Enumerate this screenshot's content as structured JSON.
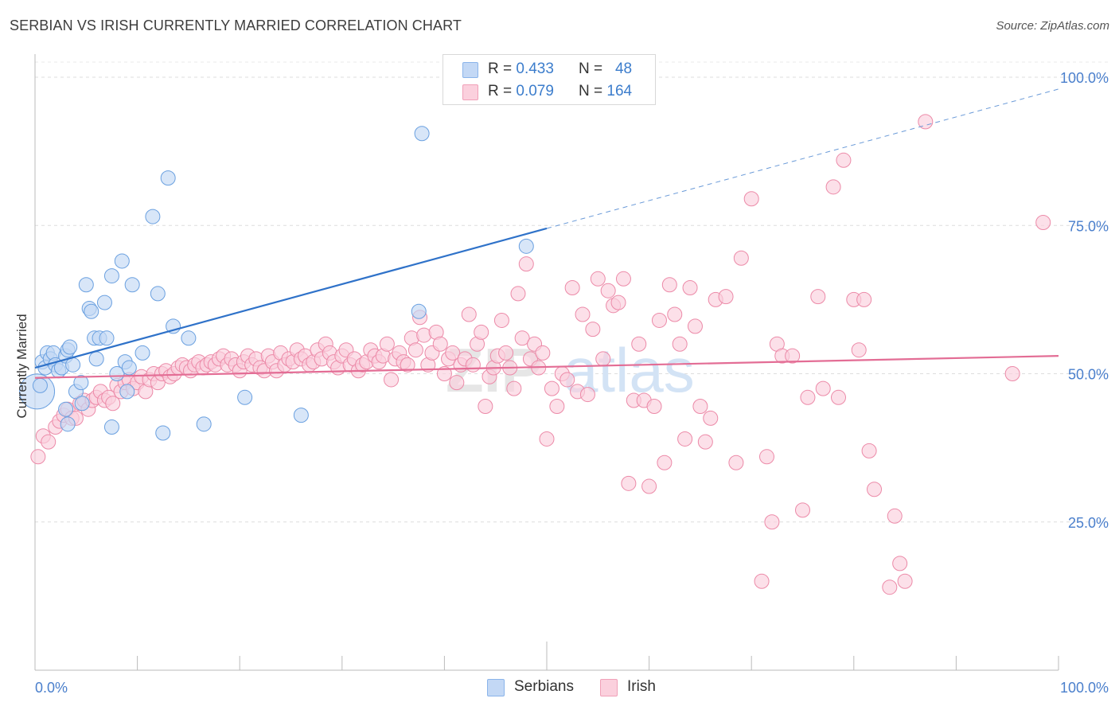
{
  "header": {
    "title": "SERBIAN VS IRISH CURRENTLY MARRIED CORRELATION CHART",
    "source": "Source: ZipAtlas.com"
  },
  "legend": {
    "series": [
      {
        "r_label": "R =",
        "r_value": "0.433",
        "n_label": "N =",
        "n_value": "48",
        "color": "#8ab4ea",
        "fill": "#c3d8f5"
      },
      {
        "r_label": "R =",
        "r_value": "0.079",
        "n_label": "N =",
        "n_value": "164",
        "color": "#f0a0b8",
        "fill": "#fbd0dd"
      }
    ]
  },
  "bottom_legend": {
    "items": [
      {
        "label": "Serbians"
      },
      {
        "label": "Irish"
      }
    ]
  },
  "watermark": {
    "zip": "ZIP",
    "atlas": "atlas"
  },
  "chart_data": {
    "type": "scatter",
    "title": "SERBIAN VS IRISH CURRENTLY MARRIED CORRELATION CHART",
    "xlabel": "",
    "ylabel": "Currently Married",
    "xlim": [
      0,
      100
    ],
    "ylim": [
      0,
      100
    ],
    "x_ticks": [
      "0.0%",
      "100.0%"
    ],
    "y_ticks": [
      {
        "value": 100,
        "label": "100.0%"
      },
      {
        "value": 75,
        "label": "75.0%"
      },
      {
        "value": 50,
        "label": "50.0%"
      },
      {
        "value": 25,
        "label": "25.0%"
      }
    ],
    "grid": "dashed horizontal",
    "legend_position": "top-center",
    "series": [
      {
        "name": "Serbians",
        "color": "#6aa0e0",
        "fill": "#c3d8f5",
        "trend": {
          "x0": 0,
          "y0": 51.0,
          "x1": 100,
          "y1": 98.0,
          "solid_until_x": 50
        },
        "points": [
          [
            0.2,
            47,
            "big"
          ],
          [
            0.5,
            48
          ],
          [
            0.7,
            52
          ],
          [
            1.0,
            51
          ],
          [
            1.2,
            53.5
          ],
          [
            1.5,
            52.5
          ],
          [
            1.8,
            53.5
          ],
          [
            2.0,
            51.5
          ],
          [
            2.3,
            50.5
          ],
          [
            2.6,
            51
          ],
          [
            3.0,
            53
          ],
          [
            3.2,
            54
          ],
          [
            3.4,
            54.5
          ],
          [
            3.7,
            51.5
          ],
          [
            4.0,
            47
          ],
          [
            4.5,
            48.5
          ],
          [
            5.0,
            65
          ],
          [
            5.3,
            61
          ],
          [
            5.5,
            60.5
          ],
          [
            5.8,
            56
          ],
          [
            6.0,
            52.5
          ],
          [
            6.3,
            56
          ],
          [
            6.8,
            62
          ],
          [
            7.0,
            56
          ],
          [
            7.5,
            41
          ],
          [
            7.5,
            66.5
          ],
          [
            8.0,
            50
          ],
          [
            8.5,
            69
          ],
          [
            8.8,
            52
          ],
          [
            9.0,
            47
          ],
          [
            9.2,
            51
          ],
          [
            9.5,
            65
          ],
          [
            10.5,
            53.5
          ],
          [
            11.5,
            76.5
          ],
          [
            12.0,
            63.5
          ],
          [
            12.5,
            40
          ],
          [
            13.0,
            83
          ],
          [
            13.5,
            58
          ],
          [
            15.0,
            56
          ],
          [
            16.5,
            41.5
          ],
          [
            20.5,
            46
          ],
          [
            26.0,
            43
          ],
          [
            3.0,
            44
          ],
          [
            3.2,
            41.5
          ],
          [
            4.6,
            45
          ],
          [
            37.5,
            60.5
          ],
          [
            37.8,
            90.5
          ],
          [
            48.0,
            71.5
          ]
        ]
      },
      {
        "name": "Irish",
        "color": "#ec8aa8",
        "fill": "#fbd0dd",
        "trend": {
          "x0": 0,
          "y0": 49.3,
          "x1": 100,
          "y1": 53.0,
          "solid_until_x": 100
        },
        "points": [
          [
            0.3,
            36
          ],
          [
            0.8,
            39.5
          ],
          [
            1.3,
            38.5
          ],
          [
            2.0,
            41
          ],
          [
            2.4,
            42
          ],
          [
            2.8,
            43
          ],
          [
            3.2,
            44
          ],
          [
            3.6,
            42.5
          ],
          [
            4.0,
            42.5
          ],
          [
            4.4,
            45
          ],
          [
            4.8,
            45.5
          ],
          [
            5.2,
            44
          ],
          [
            5.6,
            45.5
          ],
          [
            6.0,
            46
          ],
          [
            6.4,
            47
          ],
          [
            6.8,
            45.5
          ],
          [
            7.2,
            46
          ],
          [
            7.6,
            45
          ],
          [
            8.0,
            48
          ],
          [
            8.4,
            47
          ],
          [
            8.8,
            48.5
          ],
          [
            9.2,
            49
          ],
          [
            9.6,
            47.5
          ],
          [
            10.0,
            48.5
          ],
          [
            10.4,
            49.5
          ],
          [
            10.8,
            47
          ],
          [
            11.2,
            49
          ],
          [
            11.6,
            50
          ],
          [
            12.0,
            48.5
          ],
          [
            12.4,
            50
          ],
          [
            12.8,
            50.5
          ],
          [
            13.2,
            49.5
          ],
          [
            13.6,
            50
          ],
          [
            14.0,
            51
          ],
          [
            14.4,
            51.5
          ],
          [
            14.8,
            51
          ],
          [
            15.2,
            50.5
          ],
          [
            15.6,
            51.5
          ],
          [
            16.0,
            52
          ],
          [
            16.4,
            51
          ],
          [
            16.8,
            51.5
          ],
          [
            17.2,
            52
          ],
          [
            17.6,
            51.5
          ],
          [
            18.0,
            52.5
          ],
          [
            18.4,
            53
          ],
          [
            18.8,
            51.5
          ],
          [
            19.2,
            52.5
          ],
          [
            19.6,
            51.5
          ],
          [
            20.0,
            50.5
          ],
          [
            20.4,
            52
          ],
          [
            20.8,
            53
          ],
          [
            21.2,
            51.5
          ],
          [
            21.6,
            52.5
          ],
          [
            22.0,
            51
          ],
          [
            22.4,
            50.5
          ],
          [
            22.8,
            53
          ],
          [
            23.2,
            52
          ],
          [
            23.6,
            50.5
          ],
          [
            24.0,
            53.5
          ],
          [
            24.4,
            51.5
          ],
          [
            24.8,
            52.5
          ],
          [
            25.2,
            52
          ],
          [
            25.6,
            54
          ],
          [
            26.0,
            52.5
          ],
          [
            26.4,
            53
          ],
          [
            26.8,
            51.5
          ],
          [
            27.2,
            52
          ],
          [
            27.6,
            54
          ],
          [
            28.0,
            52.5
          ],
          [
            28.4,
            55
          ],
          [
            28.8,
            53.5
          ],
          [
            29.2,
            52
          ],
          [
            29.6,
            51
          ],
          [
            30.0,
            53
          ],
          [
            30.4,
            54
          ],
          [
            30.8,
            51.5
          ],
          [
            31.2,
            52.5
          ],
          [
            31.6,
            50.5
          ],
          [
            32.0,
            51.5
          ],
          [
            32.4,
            52
          ],
          [
            32.8,
            54
          ],
          [
            33.2,
            53
          ],
          [
            33.6,
            52
          ],
          [
            34.0,
            53
          ],
          [
            34.4,
            55
          ],
          [
            34.8,
            49
          ],
          [
            35.2,
            52.5
          ],
          [
            35.6,
            53.5
          ],
          [
            36.0,
            52
          ],
          [
            36.4,
            51.5
          ],
          [
            36.8,
            56
          ],
          [
            37.2,
            54
          ],
          [
            37.6,
            59.5
          ],
          [
            38.0,
            56.5
          ],
          [
            38.4,
            51.5
          ],
          [
            38.8,
            53.5
          ],
          [
            39.2,
            57
          ],
          [
            39.6,
            55
          ],
          [
            40.0,
            50
          ],
          [
            40.4,
            52.5
          ],
          [
            40.8,
            53.5
          ],
          [
            41.2,
            48.5
          ],
          [
            41.6,
            51.5
          ],
          [
            42.0,
            52.5
          ],
          [
            42.4,
            60
          ],
          [
            42.8,
            51.5
          ],
          [
            43.2,
            55
          ],
          [
            43.6,
            57
          ],
          [
            44.0,
            44.5
          ],
          [
            44.4,
            49.5
          ],
          [
            44.8,
            51
          ],
          [
            45.2,
            53
          ],
          [
            45.6,
            59
          ],
          [
            46.0,
            53.5
          ],
          [
            46.4,
            51
          ],
          [
            46.8,
            47.5
          ],
          [
            47.2,
            63.5
          ],
          [
            47.6,
            56
          ],
          [
            48.0,
            68.5
          ],
          [
            48.4,
            52.5
          ],
          [
            48.8,
            55
          ],
          [
            49.2,
            51
          ],
          [
            49.6,
            53.5
          ],
          [
            50.0,
            39
          ],
          [
            50.5,
            47.5
          ],
          [
            51.0,
            44.5
          ],
          [
            51.5,
            50
          ],
          [
            52.0,
            49
          ],
          [
            52.5,
            64.5
          ],
          [
            53.0,
            47
          ],
          [
            53.5,
            60
          ],
          [
            54.0,
            46.5
          ],
          [
            54.5,
            57.5
          ],
          [
            55.0,
            66
          ],
          [
            55.5,
            52.5
          ],
          [
            56.0,
            64
          ],
          [
            56.5,
            61.5
          ],
          [
            57.0,
            62
          ],
          [
            57.5,
            66
          ],
          [
            58.0,
            31.5
          ],
          [
            58.5,
            45.5
          ],
          [
            59.0,
            55
          ],
          [
            59.5,
            45.5
          ],
          [
            60.0,
            31
          ],
          [
            60.5,
            44.5
          ],
          [
            61.0,
            59
          ],
          [
            61.5,
            35
          ],
          [
            62.0,
            65
          ],
          [
            62.5,
            60
          ],
          [
            63.0,
            55
          ],
          [
            63.5,
            39
          ],
          [
            64.0,
            64.5
          ],
          [
            64.5,
            58
          ],
          [
            65.0,
            44.5
          ],
          [
            65.5,
            38.5
          ],
          [
            66.0,
            42.5
          ],
          [
            66.5,
            62.5
          ],
          [
            67.5,
            63
          ],
          [
            68.5,
            35
          ],
          [
            69.0,
            69.5
          ],
          [
            70.0,
            79.5
          ],
          [
            71.0,
            15
          ],
          [
            71.5,
            36
          ],
          [
            72.0,
            25
          ],
          [
            72.5,
            55
          ],
          [
            73.0,
            53
          ],
          [
            74.0,
            53
          ],
          [
            75.0,
            27
          ],
          [
            75.5,
            46
          ],
          [
            76.5,
            63
          ],
          [
            77.0,
            47.5
          ],
          [
            78.0,
            81.5
          ],
          [
            78.5,
            46
          ],
          [
            79.0,
            86
          ],
          [
            80.0,
            62.5
          ],
          [
            80.5,
            54
          ],
          [
            81.0,
            62.5
          ],
          [
            81.5,
            37
          ],
          [
            82.0,
            30.5
          ],
          [
            83.5,
            14
          ],
          [
            84.0,
            26
          ],
          [
            84.5,
            18
          ],
          [
            85.0,
            15
          ],
          [
            87.0,
            92.5
          ],
          [
            95.5,
            50
          ],
          [
            98.5,
            75.5
          ]
        ]
      }
    ]
  }
}
